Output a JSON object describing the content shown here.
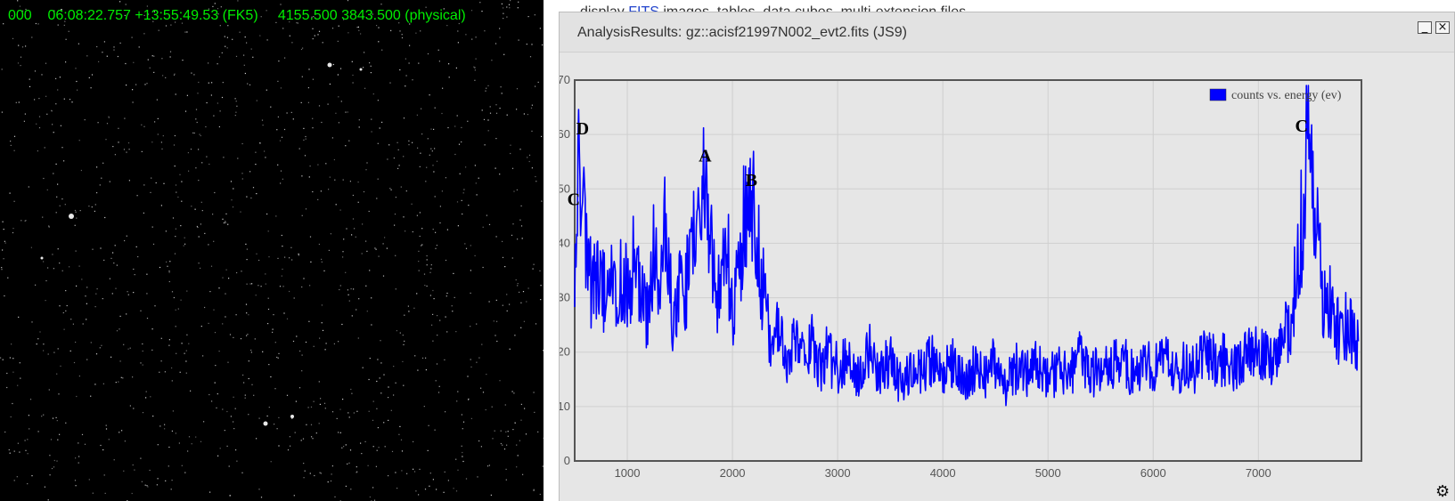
{
  "image_panel": {
    "coord_readout": "000    06:08:22.757 +13:55:49.53 (FK5)     4155.500 3843.500 (physical)"
  },
  "doc_behind": {
    "prefix": "display ",
    "link": "FITS",
    "suffix": " images, tables, data cubes, multi-extension files"
  },
  "window": {
    "title": "AnalysisResults: gz::acisf21997N002_evt2.fits (JS9)",
    "minimize_glyph": "_",
    "close_glyph": "×",
    "settings_icon": "gear-icon",
    "settings_glyph": "⚙"
  },
  "chart_data": {
    "type": "line",
    "series": [
      {
        "name": "counts vs. energy (ev)",
        "color": "#0000ff",
        "x": [
          500,
          550,
          600,
          650,
          700,
          750,
          800,
          850,
          900,
          950,
          1000,
          1050,
          1100,
          1150,
          1200,
          1250,
          1300,
          1350,
          1400,
          1450,
          1500,
          1550,
          1600,
          1650,
          1700,
          1750,
          1800,
          1850,
          1900,
          1950,
          2000,
          2050,
          2100,
          2150,
          2200,
          2250,
          2300,
          2350,
          2400,
          2450,
          2500,
          2550,
          2600,
          2650,
          2700,
          2750,
          2800,
          2850,
          2900,
          2950,
          3000,
          3100,
          3200,
          3300,
          3400,
          3500,
          3600,
          3700,
          3800,
          3900,
          4000,
          4100,
          4200,
          4300,
          4400,
          4500,
          4600,
          4700,
          4800,
          4900,
          5000,
          5100,
          5200,
          5300,
          5400,
          5500,
          5600,
          5700,
          5800,
          5900,
          6000,
          6100,
          6200,
          6300,
          6400,
          6500,
          6600,
          6700,
          6800,
          6900,
          7000,
          7100,
          7200,
          7300,
          7350,
          7400,
          7450,
          7500,
          7550,
          7600,
          7650,
          7700,
          7750,
          7800,
          7850,
          7900,
          7950
        ],
        "y": [
          34,
          58,
          38,
          33,
          36,
          30,
          32,
          40,
          30,
          34,
          31,
          36,
          33,
          30,
          28,
          38,
          32,
          44,
          35,
          24,
          36,
          31,
          40,
          45,
          51,
          53,
          38,
          30,
          33,
          40,
          28,
          35,
          42,
          45,
          50,
          38,
          30,
          24,
          22,
          25,
          21,
          18,
          23,
          20,
          17,
          22,
          19,
          16,
          21,
          18,
          17,
          18,
          15,
          20,
          16,
          19,
          14,
          18,
          17,
          19,
          16,
          18,
          15,
          17,
          16,
          18,
          14,
          17,
          16,
          18,
          15,
          17,
          16,
          19,
          15,
          18,
          17,
          20,
          16,
          18,
          17,
          19,
          16,
          18,
          17,
          20,
          18,
          19,
          17,
          19,
          21,
          18,
          20,
          25,
          32,
          40,
          56,
          62,
          45,
          33,
          28,
          30,
          25,
          22,
          26,
          24,
          22
        ]
      }
    ],
    "xlim": [
      500,
      7980
    ],
    "ylim": [
      0,
      70
    ],
    "xticks": [
      1000,
      2000,
      3000,
      4000,
      5000,
      6000,
      7000
    ],
    "yticks": [
      0,
      10,
      20,
      30,
      40,
      50,
      60,
      70
    ],
    "grid": true,
    "legend_position": "top-right",
    "annotations": [
      {
        "label": "D",
        "x": 575,
        "y": 60
      },
      {
        "label": "C",
        "x": 490,
        "y": 47
      },
      {
        "label": "A",
        "x": 1740,
        "y": 55
      },
      {
        "label": "B",
        "x": 2180,
        "y": 50.5
      },
      {
        "label": "C",
        "x": 7410,
        "y": 60.5
      }
    ]
  }
}
